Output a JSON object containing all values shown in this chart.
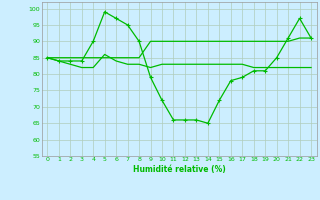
{
  "xlabel": "Humidité relative (%)",
  "background_color": "#cceeff",
  "grid_color": "#b0ccbb",
  "line_color": "#00bb00",
  "ylim": [
    55,
    102
  ],
  "yticks": [
    55,
    60,
    65,
    70,
    75,
    80,
    85,
    90,
    95,
    100
  ],
  "xlim": [
    -0.5,
    23.5
  ],
  "xticks": [
    0,
    1,
    2,
    3,
    4,
    5,
    6,
    7,
    8,
    9,
    10,
    11,
    12,
    13,
    14,
    15,
    16,
    17,
    18,
    19,
    20,
    21,
    22,
    23
  ],
  "line1": [
    85,
    84,
    84,
    84,
    90,
    99,
    97,
    95,
    90,
    79,
    72,
    66,
    66,
    66,
    65,
    72,
    78,
    79,
    81,
    81,
    85,
    91,
    97,
    91
  ],
  "line2": [
    85,
    85,
    85,
    85,
    85,
    85,
    85,
    85,
    85,
    90,
    90,
    90,
    90,
    90,
    90,
    90,
    90,
    90,
    90,
    90,
    90,
    90,
    91,
    91
  ],
  "line3": [
    85,
    84,
    83,
    82,
    82,
    86,
    84,
    83,
    83,
    82,
    83,
    83,
    83,
    83,
    83,
    83,
    83,
    83,
    82,
    82,
    82,
    82,
    82,
    82
  ]
}
